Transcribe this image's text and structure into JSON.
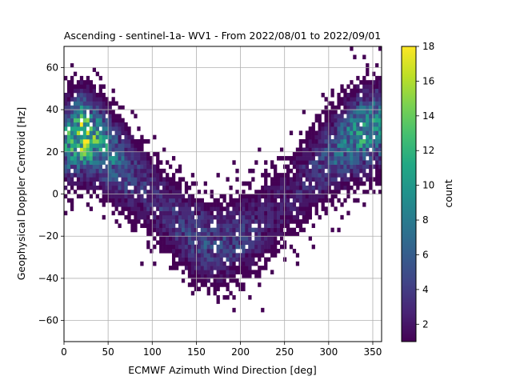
{
  "chart_data": {
    "type": "heatmap",
    "title": "Ascending - sentinel-1a- WV1 - From 2022/08/01 to 2022/09/01",
    "xlabel": "ECMWF Azimuth Wind Direction [deg]",
    "ylabel": "Geophysical Doppler Centroid [Hz]",
    "xlim": [
      0,
      360
    ],
    "ylim": [
      -70,
      70
    ],
    "xticks": [
      0,
      50,
      100,
      150,
      200,
      250,
      300,
      350
    ],
    "yticks": [
      -60,
      -40,
      -20,
      0,
      20,
      40,
      60
    ],
    "grid": true,
    "colormap": "viridis",
    "bin_width_x": 3.6,
    "bin_width_y": 2.0,
    "colorbar": {
      "label": "count",
      "range": [
        1,
        18
      ],
      "ticks": [
        2,
        4,
        6,
        8,
        10,
        12,
        14,
        16,
        18
      ]
    },
    "density_trend": {
      "description": "V-shaped distribution of counts",
      "x": [
        0,
        20,
        40,
        60,
        80,
        100,
        120,
        140,
        160,
        180,
        200,
        220,
        240,
        260,
        280,
        300,
        320,
        340,
        360
      ],
      "y_center": [
        25,
        28,
        25,
        16,
        8,
        0,
        -10,
        -18,
        -23,
        -24,
        -21,
        -16,
        -8,
        0,
        10,
        18,
        25,
        30,
        32
      ],
      "peak_count": [
        10,
        18,
        12,
        8,
        5,
        4,
        4,
        5,
        6,
        5,
        5,
        4,
        3,
        3,
        4,
        6,
        9,
        12,
        11
      ]
    }
  }
}
